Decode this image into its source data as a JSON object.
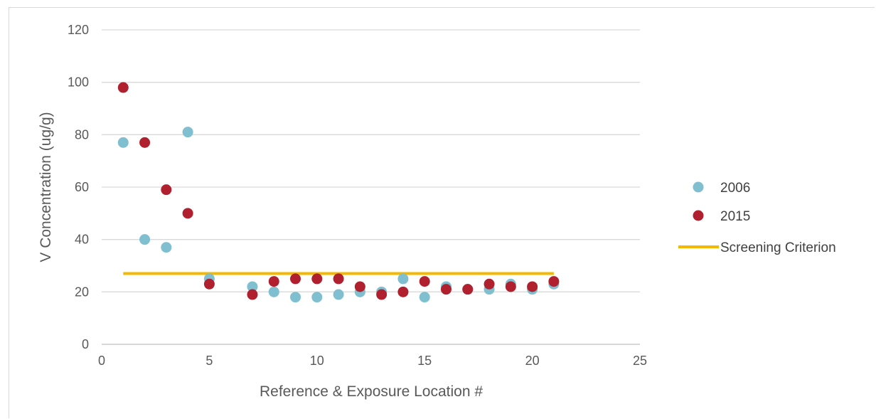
{
  "chart_data": {
    "type": "scatter",
    "xlabel": "Reference & Exposure Location #",
    "ylabel": "V Concentration (ug/g)",
    "xlim": [
      0,
      25
    ],
    "ylim": [
      0,
      120
    ],
    "xticks": [
      "0",
      "5",
      "10",
      "15",
      "20",
      "25"
    ],
    "yticks": [
      "0",
      "20",
      "40",
      "60",
      "80",
      "100",
      "120"
    ],
    "grid": "horizontal",
    "legend_position": "right",
    "series": [
      {
        "name": "2006",
        "color": "#7fbfcf",
        "points": [
          {
            "x": 1,
            "y": 77
          },
          {
            "x": 2,
            "y": 40
          },
          {
            "x": 3,
            "y": 37
          },
          {
            "x": 4,
            "y": 81
          },
          {
            "x": 5,
            "y": 25
          },
          {
            "x": 7,
            "y": 22
          },
          {
            "x": 8,
            "y": 20
          },
          {
            "x": 9,
            "y": 18
          },
          {
            "x": 10,
            "y": 18
          },
          {
            "x": 11,
            "y": 19
          },
          {
            "x": 12,
            "y": 20
          },
          {
            "x": 13,
            "y": 20
          },
          {
            "x": 14,
            "y": 25
          },
          {
            "x": 15,
            "y": 18
          },
          {
            "x": 16,
            "y": 22
          },
          {
            "x": 17,
            "y": 21
          },
          {
            "x": 18,
            "y": 21
          },
          {
            "x": 19,
            "y": 23
          },
          {
            "x": 20,
            "y": 21
          },
          {
            "x": 21,
            "y": 23
          }
        ]
      },
      {
        "name": "2015",
        "color": "#b0202e",
        "points": [
          {
            "x": 1,
            "y": 98
          },
          {
            "x": 2,
            "y": 77
          },
          {
            "x": 3,
            "y": 59
          },
          {
            "x": 4,
            "y": 50
          },
          {
            "x": 5,
            "y": 23
          },
          {
            "x": 7,
            "y": 19
          },
          {
            "x": 8,
            "y": 24
          },
          {
            "x": 9,
            "y": 25
          },
          {
            "x": 10,
            "y": 25
          },
          {
            "x": 11,
            "y": 25
          },
          {
            "x": 12,
            "y": 22
          },
          {
            "x": 13,
            "y": 19
          },
          {
            "x": 14,
            "y": 20
          },
          {
            "x": 15,
            "y": 24
          },
          {
            "x": 16,
            "y": 21
          },
          {
            "x": 17,
            "y": 21
          },
          {
            "x": 18,
            "y": 23
          },
          {
            "x": 19,
            "y": 22
          },
          {
            "x": 20,
            "y": 22
          },
          {
            "x": 21,
            "y": 24
          }
        ]
      }
    ],
    "lines": [
      {
        "name": "Screening Criterion",
        "color": "#f5b800",
        "x": [
          1,
          21
        ],
        "y": [
          27,
          27
        ]
      }
    ]
  },
  "legend": {
    "items": [
      {
        "label": "2006",
        "type": "marker",
        "color": "#7fbfcf"
      },
      {
        "label": "2015",
        "type": "marker",
        "color": "#b0202e"
      },
      {
        "label": "Screening Criterion",
        "type": "line",
        "color": "#f5b800"
      }
    ]
  }
}
